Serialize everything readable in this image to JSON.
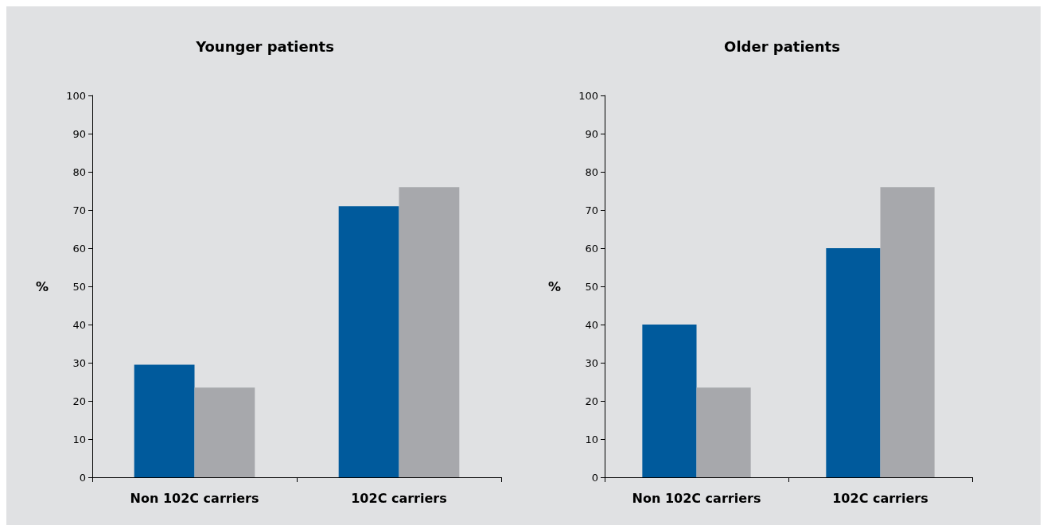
{
  "chart_data": [
    {
      "type": "bar",
      "title": "Younger patients",
      "ylabel": "%",
      "categories": [
        "Non 102C carriers",
        "102C carriers"
      ],
      "series": [
        {
          "color": "#005a9c",
          "values": [
            29.5,
            71
          ]
        },
        {
          "color": "#a7a8ac",
          "values": [
            23.5,
            76
          ]
        }
      ],
      "ylim": [
        0,
        100
      ],
      "yticks": [
        0,
        10,
        20,
        30,
        40,
        50,
        60,
        70,
        80,
        90,
        100
      ]
    },
    {
      "type": "bar",
      "title": "Older patients",
      "ylabel": "%",
      "categories": [
        "Non 102C carriers",
        "102C carriers"
      ],
      "series": [
        {
          "color": "#005a9c",
          "values": [
            40,
            60
          ]
        },
        {
          "color": "#a7a8ac",
          "values": [
            23.5,
            76
          ]
        }
      ],
      "ylim": [
        0,
        100
      ],
      "yticks": [
        0,
        10,
        20,
        30,
        40,
        50,
        60,
        70,
        80,
        90,
        100
      ]
    }
  ]
}
